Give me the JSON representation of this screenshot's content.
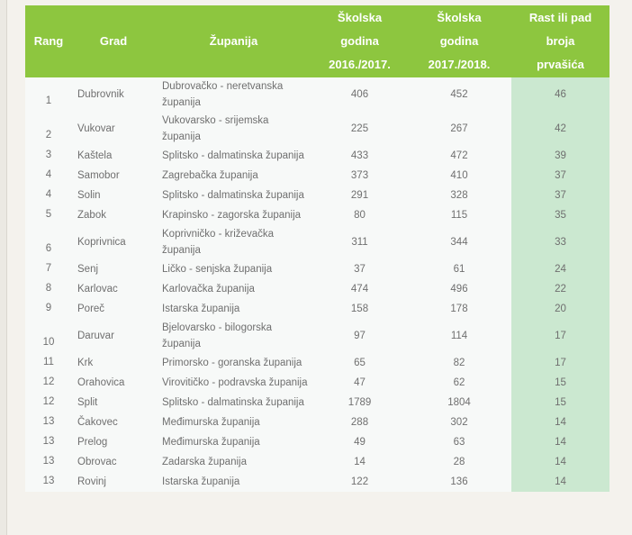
{
  "chart_data": {
    "type": "table",
    "columns": [
      "Rang",
      "Grad",
      "Županija",
      "Školska godina 2016./2017.",
      "Školska godina 2017./2018.",
      "Rast ili pad broja prvašića"
    ],
    "header_display": [
      "Rang",
      "Grad",
      "Županija",
      "Školska\ngodina\n2016./2017.",
      "Školska\ngodina\n2017./2018.",
      "Rast ili pad\nbroja\nprvašića"
    ],
    "rows": [
      [
        "1",
        "Dubrovnik",
        "Dubrovačko - neretvanska županija",
        "406",
        "452",
        "46"
      ],
      [
        "2",
        "Vukovar",
        "Vukovarsko - srijemska županija",
        "225",
        "267",
        "42"
      ],
      [
        "3",
        "Kaštela",
        "Splitsko - dalmatinska županija",
        "433",
        "472",
        "39"
      ],
      [
        "4",
        "Samobor",
        "Zagrebačka županija",
        "373",
        "410",
        "37"
      ],
      [
        "4",
        "Solin",
        "Splitsko - dalmatinska županija",
        "291",
        "328",
        "37"
      ],
      [
        "5",
        "Zabok",
        "Krapinsko - zagorska županija",
        "80",
        "115",
        "35"
      ],
      [
        "6",
        "Koprivnica",
        "Koprivničko - križevačka županija",
        "311",
        "344",
        "33"
      ],
      [
        "7",
        "Senj",
        "Ličko - senjska županija",
        "37",
        "61",
        "24"
      ],
      [
        "8",
        "Karlovac",
        "Karlovačka županija",
        "474",
        "496",
        "22"
      ],
      [
        "9",
        "Poreč",
        "Istarska županija",
        "158",
        "178",
        "20"
      ],
      [
        "10",
        "Daruvar",
        "Bjelovarsko - bilogorska županija",
        "97",
        "114",
        "17"
      ],
      [
        "11",
        "Krk",
        "Primorsko - goranska županija",
        "65",
        "82",
        "17"
      ],
      [
        "12",
        "Orahovica",
        "Virovitičko - podravska županija",
        "47",
        "62",
        "15"
      ],
      [
        "12",
        "Split",
        "Splitsko - dalmatinska županija",
        "1789",
        "1804",
        "15"
      ],
      [
        "13",
        "Čakovec",
        "Međimurska županija",
        "288",
        "302",
        "14"
      ],
      [
        "13",
        "Prelog",
        "Međimurska županija",
        "49",
        "63",
        "14"
      ],
      [
        "13",
        "Obrovac",
        "Zadarska županija",
        "14",
        "28",
        "14"
      ],
      [
        "13",
        "Rovinj",
        "Istarska županija",
        "122",
        "136",
        "14"
      ]
    ],
    "colors": {
      "header_bg": "#8dc63f",
      "header_text": "#ffffff",
      "growth_column_bg": "#cbe8d0",
      "body_text": "#6f6f6f",
      "page_bg": "#f4f2ed"
    }
  }
}
